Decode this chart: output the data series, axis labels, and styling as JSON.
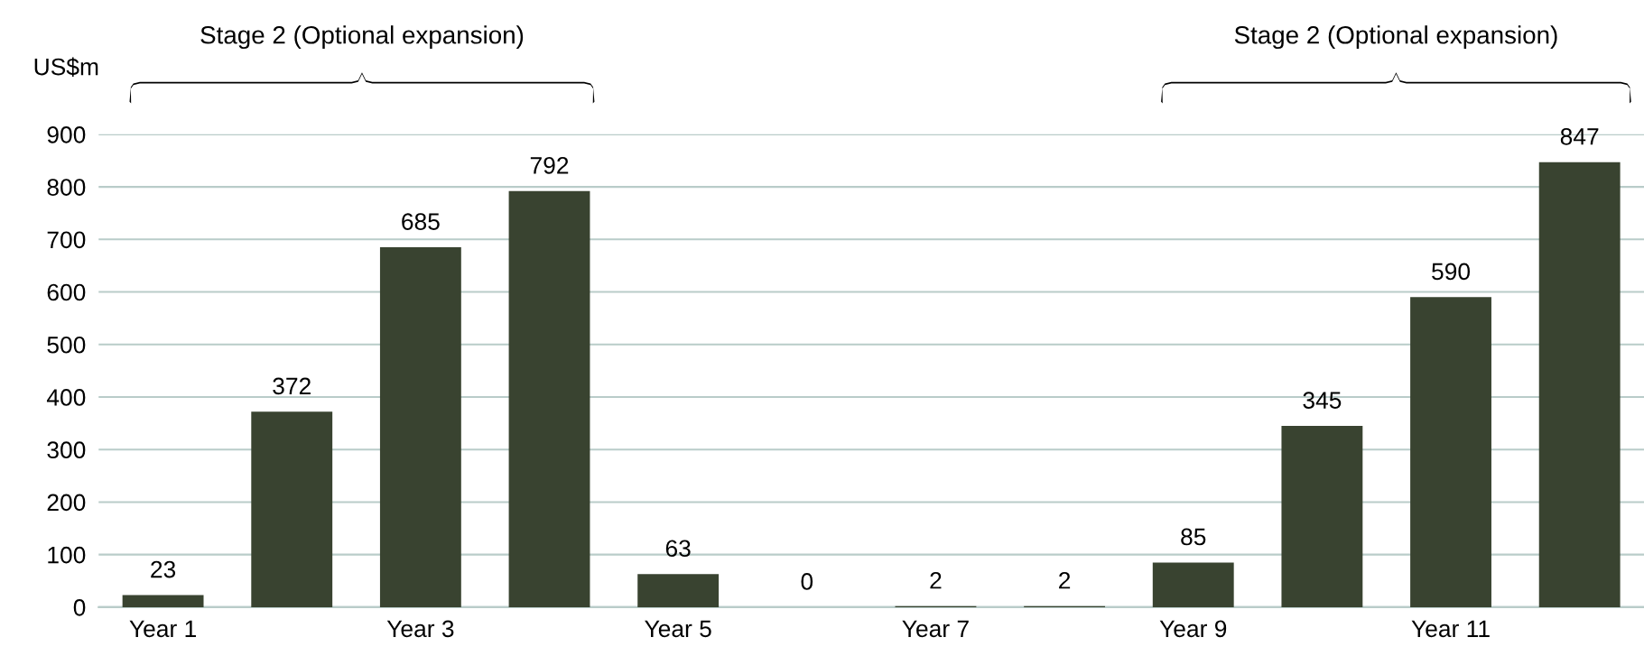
{
  "chart_data": {
    "type": "bar",
    "ylabel": "US$m",
    "categories": [
      "Year 1",
      null,
      "Year 3",
      null,
      "Year 5",
      null,
      "Year 7",
      null,
      "Year 9",
      null,
      "Year 11",
      null
    ],
    "values": [
      23,
      372,
      685,
      792,
      63,
      0,
      2,
      2,
      85,
      345,
      590,
      847
    ],
    "color": "#394330",
    "data_labels": true,
    "ylim": [
      0,
      900
    ],
    "yticks": [
      0,
      100,
      200,
      300,
      400,
      500,
      600,
      700,
      800,
      900
    ],
    "grid": "y",
    "annotations": [
      "Stage 2 (Optional expansion)",
      "Stage 2 (Optional expansion)"
    ]
  }
}
